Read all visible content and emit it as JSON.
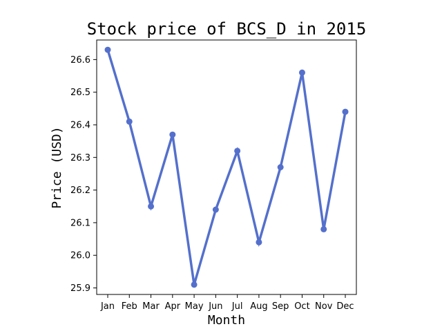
{
  "chart_data": {
    "type": "line",
    "title": "Stock price of BCS_D in 2015",
    "xlabel": "Month",
    "ylabel": "Price (USD)",
    "categories": [
      "Jan",
      "Feb",
      "Mar",
      "Apr",
      "May",
      "Jun",
      "Jul",
      "Aug",
      "Sep",
      "Oct",
      "Nov",
      "Dec"
    ],
    "series": [
      {
        "values": [
          26.63,
          26.41,
          26.15,
          26.37,
          25.91,
          26.14,
          26.32,
          26.04,
          26.27,
          26.56,
          26.08,
          26.44
        ],
        "color": "#5470cc",
        "marker": "circle"
      }
    ],
    "ylim": [
      25.88,
      26.66
    ],
    "yticks": [
      25.9,
      26.0,
      26.1,
      26.2,
      26.3,
      26.4,
      26.5,
      26.6
    ],
    "ytick_labels": [
      "25.9",
      "26.0",
      "26.1",
      "26.2",
      "26.3",
      "26.4",
      "26.5",
      "26.6"
    ],
    "grid": false,
    "legend": "none"
  }
}
